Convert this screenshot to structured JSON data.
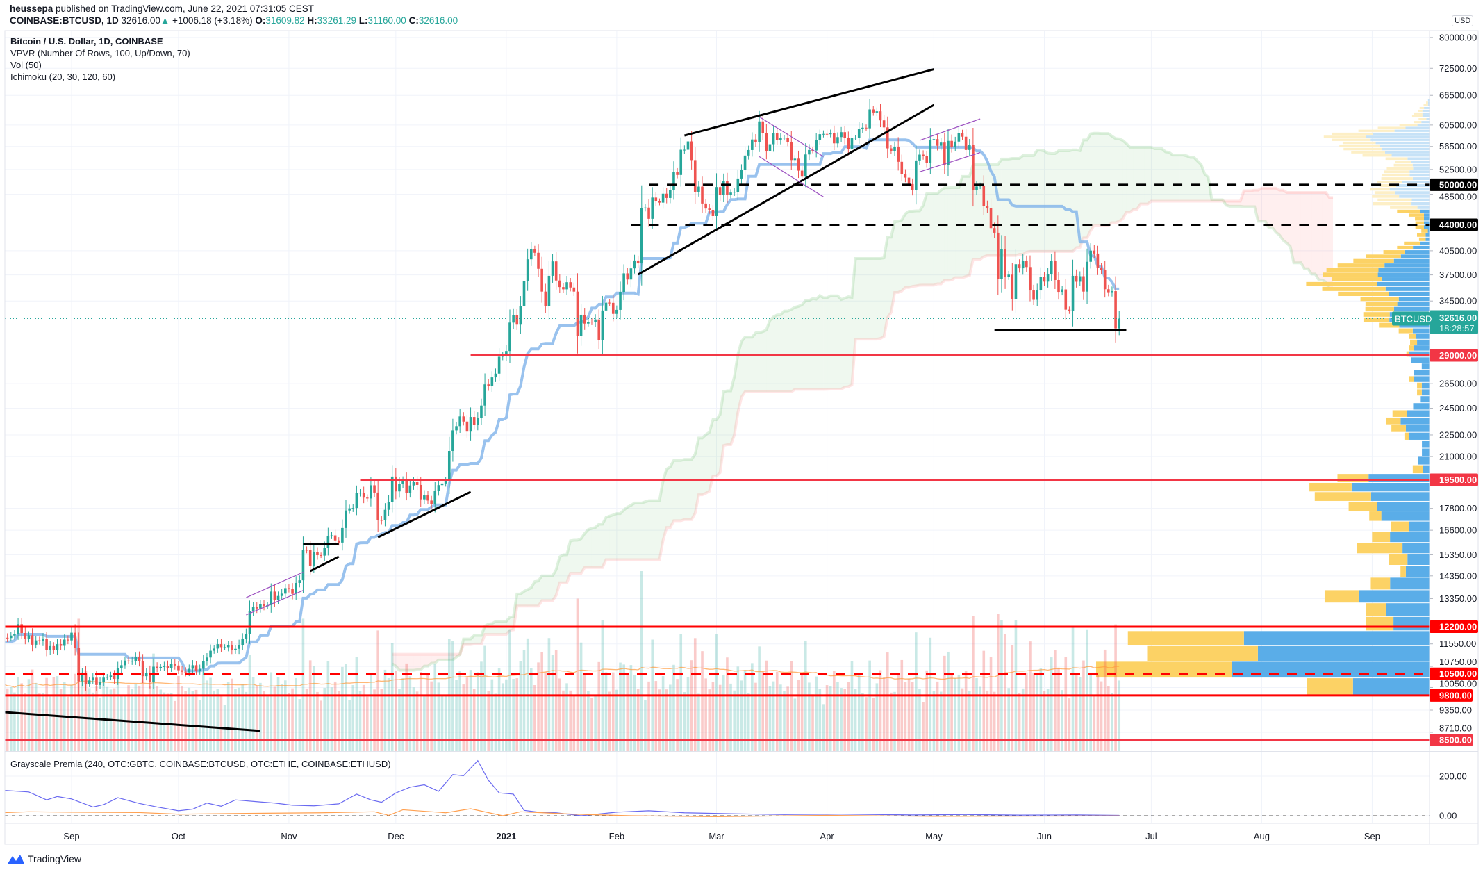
{
  "header": {
    "author": "heussepa",
    "published": "published on TradingView.com, June 22, 2021 07:31:05 CEST",
    "symbol": "COINBASE:BTCUSD, 1D",
    "last": "32616.00",
    "change": "+1006.18 (+3.18%)",
    "o_label": "O:",
    "o": "31609.82",
    "h_label": "H:",
    "h": "33261.29",
    "l_label": "L:",
    "l": "31160.00",
    "c_label": "C:",
    "c": "32616.00"
  },
  "legend": {
    "title": "Bitcoin / U.S. Dollar, 1D, COINBASE",
    "vpvr": "VPVR (Number Of Rows, 100, Up/Down, 70)",
    "vol": "Vol (50)",
    "ichimoku": "Ichimoku (20, 30, 120, 60)",
    "indicator": "Grayscale Premia (240, OTC:GBTC, COINBASE:BTCUSD, OTC:ETHE, COINBASE:ETHUSD)"
  },
  "currency_button": "USD",
  "current_price": {
    "symbol": "BTCUSD",
    "price": "32616.00",
    "countdown": "18:28:57",
    "value": 32616
  },
  "colors": {
    "up": "#26a69a",
    "down": "#ef5350",
    "kijun": "#7fb3ea",
    "vpvr_up": "#5aade8",
    "vpvr_down": "#fcd265",
    "line_red": "#ff0000",
    "premia_blue": "#6a6af0",
    "premia_orange": "#ffa050"
  },
  "price_axis": {
    "scale": "log",
    "ticks": [
      "80000.00",
      "72500.00",
      "66500.00",
      "60500.00",
      "56500.00",
      "52500.00",
      "48500.00",
      "40500.00",
      "37500.00",
      "34500.00",
      "26500.00",
      "24500.00",
      "22500.00",
      "21000.00",
      "17800.00",
      "16600.00",
      "15350.00",
      "14350.00",
      "13350.00",
      "11550.00",
      "10750.00",
      "10050.00",
      "9350.00",
      "8710.00"
    ],
    "indicator_ticks": [
      "200.00",
      "0.00"
    ]
  },
  "price_lines": [
    {
      "label": "50000.00",
      "price": 50000,
      "style": "dashed",
      "color": "#000000",
      "from": "2021-02-10"
    },
    {
      "label": "44000.00",
      "price": 44000,
      "style": "dashed",
      "color": "#000000",
      "from": "2021-02-05"
    },
    {
      "label": "29000.00",
      "price": 29000,
      "style": "solid",
      "color": "#f23645",
      "from": "2020-12-22"
    },
    {
      "label": "19500.00",
      "price": 19500,
      "style": "solid",
      "color": "#f23645",
      "from": "2020-11-21"
    },
    {
      "label": "12200.00",
      "price": 12200,
      "style": "solid",
      "color": "#ff0000",
      "from": "2020-08-12"
    },
    {
      "label": "10500.00",
      "price": 10500,
      "style": "dashed",
      "color": "#ff0000",
      "from": "2020-08-12"
    },
    {
      "label": "9800.00",
      "price": 9800,
      "style": "solid",
      "color": "#ff0000",
      "from": "2020-08-12"
    },
    {
      "label": "8500.00",
      "price": 8500,
      "style": "solid",
      "color": "#f23645",
      "from": "2020-08-12"
    }
  ],
  "time_axis": {
    "ticks": [
      {
        "label": "Sep",
        "date": "2020-09-01"
      },
      {
        "label": "Oct",
        "date": "2020-10-01"
      },
      {
        "label": "Nov",
        "date": "2020-11-01"
      },
      {
        "label": "Dec",
        "date": "2020-12-01"
      },
      {
        "label": "2021",
        "date": "2021-01-01",
        "bold": true
      },
      {
        "label": "Feb",
        "date": "2021-02-01"
      },
      {
        "label": "Mar",
        "date": "2021-03-01"
      },
      {
        "label": "Apr",
        "date": "2021-04-01"
      },
      {
        "label": "May",
        "date": "2021-05-01"
      },
      {
        "label": "Jun",
        "date": "2021-06-01"
      },
      {
        "label": "Jul",
        "date": "2021-07-01"
      },
      {
        "label": "Aug",
        "date": "2021-08-01"
      },
      {
        "label": "Sep",
        "date": "2021-09-01"
      }
    ]
  },
  "drawings": [
    {
      "type": "trendline",
      "color": "#000000",
      "a": [
        "2021-02-20",
        58500
      ],
      "b": [
        "2021-05-01",
        72300
      ]
    },
    {
      "type": "trendline",
      "color": "#000000",
      "a": [
        "2021-02-07",
        37550
      ],
      "b": [
        "2021-05-01",
        64500
      ]
    },
    {
      "type": "trendline",
      "color": "#000000",
      "a": [
        "2020-11-26",
        16230
      ],
      "b": [
        "2020-12-22",
        18760
      ]
    },
    {
      "type": "trendline",
      "color": "#000000",
      "a": [
        "2020-11-07",
        14570
      ],
      "b": [
        "2020-11-15",
        15260
      ]
    },
    {
      "type": "trendline",
      "color": "#000000",
      "a": [
        "2020-11-05",
        15880
      ],
      "b": [
        "2020-11-15",
        15880
      ]
    },
    {
      "type": "trendline",
      "color": "#000000",
      "a": [
        "2021-05-18",
        31440
      ],
      "b": [
        "2021-06-24",
        31440
      ]
    },
    {
      "type": "trendline",
      "color": "#000000",
      "a": [
        "2020-08-13",
        9290
      ],
      "b": [
        "2020-10-24",
        8750
      ]
    },
    {
      "type": "channel",
      "color": "#9c4fc0",
      "a": [
        "2020-10-20",
        13390
      ],
      "b": [
        "2020-11-05",
        14520
      ]
    },
    {
      "type": "channel",
      "color": "#9c4fc0",
      "a": [
        "2020-10-20",
        12670
      ],
      "b": [
        "2020-11-05",
        13700
      ]
    },
    {
      "type": "channel",
      "color": "#9c4fc0",
      "a": [
        "2021-03-13",
        62100
      ],
      "b": [
        "2021-03-31",
        54700
      ]
    },
    {
      "type": "channel",
      "color": "#9c4fc0",
      "a": [
        "2021-03-13",
        54700
      ],
      "b": [
        "2021-03-31",
        48100
      ]
    },
    {
      "type": "channel",
      "color": "#9c4fc0",
      "a": [
        "2021-04-27",
        52100
      ],
      "b": [
        "2021-05-14",
        55400
      ]
    },
    {
      "type": "channel",
      "color": "#9c4fc0",
      "a": [
        "2021-04-27",
        57600
      ],
      "b": [
        "2021-05-14",
        61700
      ]
    }
  ],
  "chart_data": {
    "type": "candlestick",
    "interval": "1D",
    "start_date": "2020-08-12",
    "first_open": 11400,
    "closes": [
      11580,
      11780,
      11770,
      11860,
      11910,
      12300,
      11960,
      11750,
      11870,
      11520,
      11680,
      11650,
      11750,
      11330,
      11470,
      11320,
      11540,
      11480,
      11710,
      11680,
      11970,
      11410,
      10250,
      10510,
      10170,
      10280,
      10370,
      10130,
      10240,
      10370,
      10400,
      10440,
      10330,
      10680,
      10790,
      10950,
      10940,
      10940,
      11080,
      10920,
      10420,
      10530,
      10240,
      10740,
      10690,
      10730,
      10775,
      10700,
      10840,
      10780,
      10620,
      10570,
      10550,
      10670,
      10790,
      10600,
      10670,
      10920,
      11060,
      11300,
      11380,
      11540,
      11430,
      11430,
      11500,
      11320,
      11370,
      11500,
      11750,
      11920,
      12820,
      12990,
      12930,
      13110,
      13030,
      13070,
      13650,
      13280,
      13460,
      13560,
      13800,
      13760,
      13550,
      14030,
      14150,
      15590,
      15580,
      14830,
      15480,
      15330,
      15310,
      15700,
      16290,
      16330,
      16070,
      15960,
      16720,
      17680,
      17800,
      17820,
      18680,
      18710,
      18420,
      18370,
      19160,
      18720,
      17150,
      17140,
      17720,
      18180,
      19700,
      18790,
      19230,
      19450,
      18700,
      19150,
      19380,
      19180,
      18320,
      18550,
      18250,
      18040,
      18810,
      19170,
      19270,
      19440,
      21380,
      22830,
      23140,
      23870,
      23480,
      22740,
      23830,
      23250,
      23730,
      24710,
      26440,
      26280,
      27040,
      27360,
      28880,
      28990,
      29410,
      32200,
      33000,
      31990,
      33950,
      36770,
      39410,
      40670,
      40240,
      38240,
      35550,
      33960,
      37390,
      39150,
      36830,
      36070,
      35810,
      36630,
      36020,
      35550,
      30850,
      33020,
      32100,
      32290,
      32270,
      32530,
      30430,
      33470,
      34320,
      34300,
      33110,
      33540,
      35520,
      37680,
      36950,
      38290,
      39260,
      38900,
      46400,
      46480,
      44850,
      47990,
      47410,
      47220,
      48590,
      47930,
      49150,
      52120,
      51580,
      55900,
      55900,
      57410,
      54090,
      48890,
      49700,
      47090,
      46340,
      46150,
      45240,
      49630,
      48380,
      50540,
      48370,
      48760,
      48880,
      51000,
      52380,
      54880,
      55850,
      57770,
      57230,
      61190,
      59010,
      55630,
      56900,
      58910,
      57650,
      58030,
      58100,
      57350,
      54100,
      54340,
      52300,
      51310,
      55070,
      55860,
      55780,
      57630,
      58750,
      58800,
      58740,
      58970,
      57060,
      58210,
      59130,
      57990,
      56000,
      58090,
      58100,
      59770,
      59980,
      59860,
      63580,
      62960,
      63200,
      61400,
      60040,
      56150,
      55660,
      56470,
      53800,
      51700,
      51150,
      50110,
      49120,
      54030,
      55040,
      54840,
      53560,
      57720,
      57830,
      56630,
      57200,
      53240,
      57510,
      56440,
      57380,
      58900,
      58280,
      55860,
      56750,
      49150,
      49720,
      49880,
      46760,
      46430,
      43540,
      42900,
      37000,
      40700,
      37300,
      37530,
      34700,
      38800,
      38300,
      39240,
      38450,
      35680,
      34630,
      35680,
      37300,
      36700,
      37570,
      39190,
      36890,
      35520,
      35800,
      33560,
      33400,
      37390,
      36690,
      37340,
      35550,
      39100,
      40520,
      40140,
      38350,
      38090,
      35820,
      35480,
      35600,
      31610,
      32616
    ],
    "indicator": {
      "zero_line": 0,
      "series": [
        {
          "color": "#6a6af0",
          "points": [
            [
              "2020-08-12",
              129
            ],
            [
              "2020-08-20",
              120
            ],
            [
              "2020-08-25",
              80
            ],
            [
              "2020-08-28",
              97
            ],
            [
              "2020-09-01",
              85
            ],
            [
              "2020-09-07",
              44
            ],
            [
              "2020-09-10",
              56
            ],
            [
              "2020-09-14",
              91
            ],
            [
              "2020-09-20",
              62
            ],
            [
              "2020-09-25",
              44
            ],
            [
              "2020-10-01",
              25
            ],
            [
              "2020-10-05",
              33
            ],
            [
              "2020-10-09",
              64
            ],
            [
              "2020-10-13",
              48
            ],
            [
              "2020-10-17",
              80
            ],
            [
              "2020-10-23",
              71
            ],
            [
              "2020-10-28",
              64
            ],
            [
              "2020-11-02",
              53
            ],
            [
              "2020-11-08",
              50
            ],
            [
              "2020-11-15",
              60
            ],
            [
              "2020-11-20",
              109
            ],
            [
              "2020-11-24",
              80
            ],
            [
              "2020-11-27",
              68
            ],
            [
              "2020-12-01",
              115
            ],
            [
              "2020-12-05",
              144
            ],
            [
              "2020-12-09",
              156
            ],
            [
              "2020-12-13",
              123
            ],
            [
              "2020-12-17",
              208
            ],
            [
              "2020-12-20",
              202
            ],
            [
              "2020-12-24",
              278
            ],
            [
              "2020-12-27",
              179
            ],
            [
              "2020-12-30",
              115
            ],
            [
              "2021-01-03",
              109
            ],
            [
              "2021-01-06",
              27
            ],
            [
              "2021-01-10",
              18
            ],
            [
              "2021-01-15",
              15
            ],
            [
              "2021-01-22",
              0
            ],
            [
              "2021-02-01",
              18
            ],
            [
              "2021-02-10",
              25
            ],
            [
              "2021-02-20",
              15
            ],
            [
              "2021-03-05",
              10
            ],
            [
              "2021-03-20",
              6
            ],
            [
              "2021-04-05",
              8
            ],
            [
              "2021-04-25",
              4
            ],
            [
              "2021-05-10",
              6
            ],
            [
              "2021-05-25",
              3
            ],
            [
              "2021-06-10",
              4
            ],
            [
              "2021-06-22",
              2
            ]
          ]
        },
        {
          "color": "#ffa050",
          "points": [
            [
              "2020-08-12",
              15
            ],
            [
              "2020-08-20",
              20
            ],
            [
              "2020-09-01",
              18
            ],
            [
              "2020-09-20",
              16
            ],
            [
              "2020-10-01",
              8
            ],
            [
              "2020-10-20",
              12
            ],
            [
              "2020-11-10",
              15
            ],
            [
              "2020-11-25",
              20
            ],
            [
              "2020-11-29",
              2
            ],
            [
              "2020-12-03",
              30
            ],
            [
              "2020-12-15",
              15
            ],
            [
              "2020-12-22",
              35
            ],
            [
              "2020-12-31",
              0
            ],
            [
              "2021-01-05",
              20
            ],
            [
              "2021-01-20",
              8
            ],
            [
              "2021-02-05",
              0
            ],
            [
              "2021-03-01",
              -5
            ],
            [
              "2021-04-01",
              2
            ],
            [
              "2021-05-01",
              -3
            ],
            [
              "2021-06-01",
              -2
            ],
            [
              "2021-06-22",
              -1
            ]
          ]
        }
      ]
    }
  },
  "brand": "TradingView"
}
